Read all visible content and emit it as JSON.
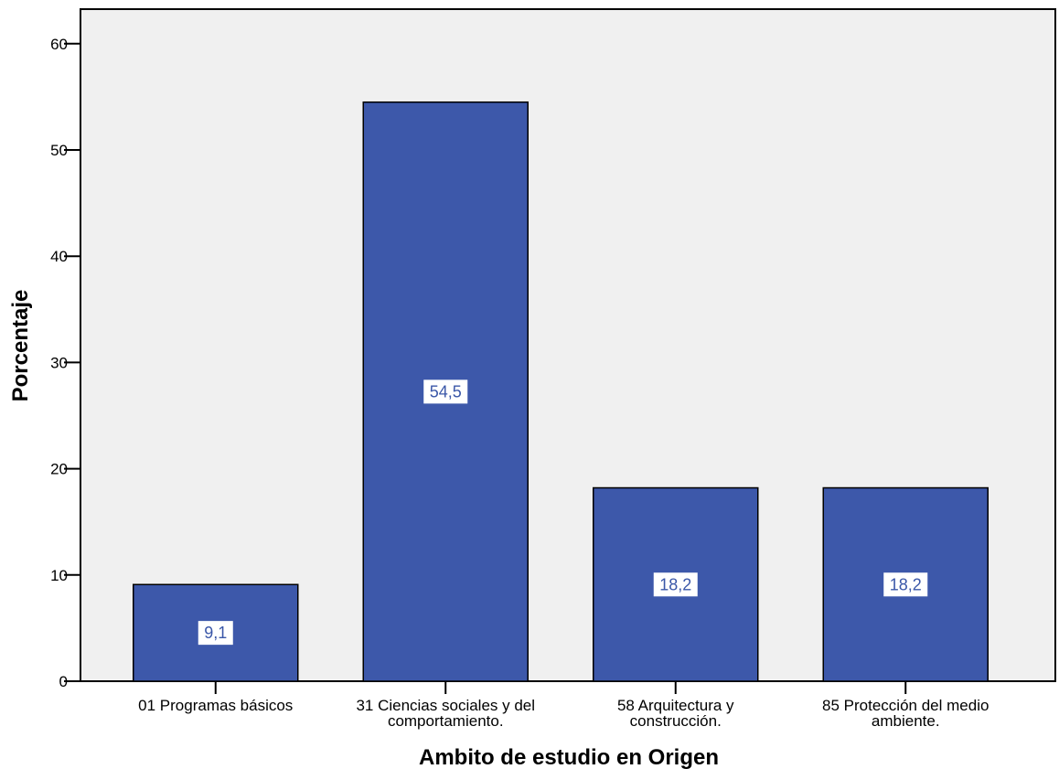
{
  "chart_data": {
    "type": "bar",
    "categories": [
      [
        "01 Programas básicos"
      ],
      [
        "31 Ciencias sociales y del",
        "comportamiento."
      ],
      [
        "58 Arquitectura y",
        "construcción."
      ],
      [
        "85 Protección del medio",
        "ambiente."
      ]
    ],
    "values": [
      9.1,
      54.5,
      18.2,
      18.2
    ],
    "data_labels": [
      "9,1",
      "54,5",
      "18,2",
      "18,2"
    ],
    "xlabel": "Ambito de estudio en Origen",
    "ylabel": "Porcentaje",
    "ylim": [
      0,
      63
    ],
    "yticks": [
      0,
      10,
      20,
      30,
      40,
      50,
      60
    ],
    "bar_color": "#3d58aa",
    "plot_background": "#f0f0f0",
    "grid": false,
    "legend": "none"
  }
}
